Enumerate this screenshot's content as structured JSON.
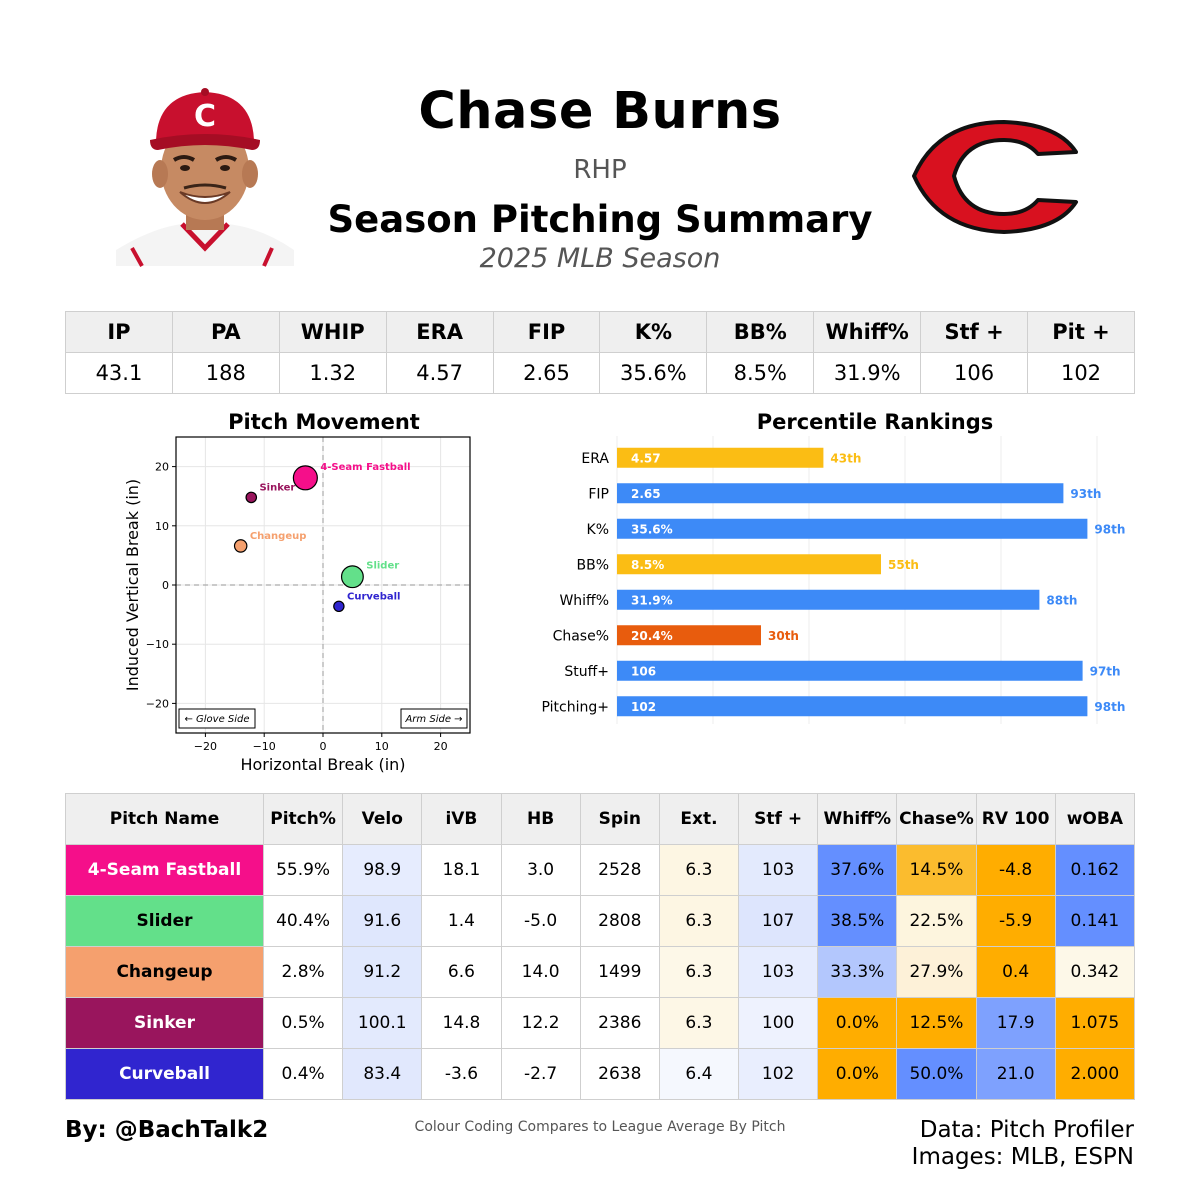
{
  "header": {
    "player_name": "Chase Burns",
    "hand": "RHP",
    "summary_title": "Season Pitching Summary",
    "season": "2025 MLB Season"
  },
  "images": {
    "player_photo": "player-headshot",
    "team_logo": "reds-c-logo"
  },
  "colors": {
    "four_seam": "#f50f8a",
    "slider": "#63e08a",
    "changeup": "#f5a06e",
    "sinker": "#99155d",
    "curveball": "#3025cf",
    "bar_blue": "#3d8af7",
    "bar_yellow": "#fbbd14",
    "bar_orange": "#e85c0d",
    "high": "#ffad00",
    "low": "#648fff"
  },
  "stats": {
    "headers": [
      "IP",
      "PA",
      "WHIP",
      "ERA",
      "FIP",
      "K%",
      "BB%",
      "Whiff%",
      "Stf +",
      "Pit +"
    ],
    "values": [
      "43.1",
      "188",
      "1.32",
      "4.57",
      "2.65",
      "35.6%",
      "8.5%",
      "31.9%",
      "106",
      "102"
    ]
  },
  "chart_data": [
    {
      "type": "scatter",
      "title": "Pitch Movement",
      "xlabel": "Horizontal Break (in)",
      "ylabel": "Induced Vertical Break (in)",
      "xlim": [
        -25,
        25
      ],
      "ylim": [
        -25,
        25
      ],
      "xticks": [
        "−20",
        "−10",
        "0",
        "10",
        "20"
      ],
      "yticks": [
        "20",
        "10",
        "0",
        "−10",
        "−20"
      ],
      "grid": true,
      "annotations": [
        "← Glove Side",
        "Arm Side →"
      ],
      "points": [
        {
          "label": "4-Seam Fastball",
          "x": -3.0,
          "y": 18.1,
          "usage": 55.9,
          "color": "#f50f8a"
        },
        {
          "label": "Sinker",
          "x": -12.2,
          "y": 14.8,
          "usage": 0.5,
          "color": "#99155d"
        },
        {
          "label": "Changeup",
          "x": -14.0,
          "y": 6.6,
          "usage": 2.8,
          "color": "#f5a06e"
        },
        {
          "label": "Slider",
          "x": 5.0,
          "y": 1.4,
          "usage": 40.4,
          "color": "#63e08a"
        },
        {
          "label": "Curveball",
          "x": 2.7,
          "y": -3.6,
          "usage": 0.4,
          "color": "#3025cf"
        }
      ]
    },
    {
      "type": "bar",
      "orientation": "horizontal",
      "title": "Percentile Rankings",
      "xlim": [
        0,
        100
      ],
      "grid": true,
      "categories": [
        "ERA",
        "FIP",
        "K%",
        "BB%",
        "Whiff%",
        "Chase%",
        "Stuff+",
        "Pitching+"
      ],
      "values": [
        43,
        93,
        98,
        55,
        88,
        30,
        97,
        98
      ],
      "bar_labels": [
        "4.57",
        "2.65",
        "35.6%",
        "8.5%",
        "31.9%",
        "20.4%",
        "106",
        "102"
      ],
      "percentile_labels": [
        "43th",
        "93th",
        "98th",
        "55th",
        "88th",
        "30th",
        "97th",
        "98th"
      ],
      "bar_colors": [
        "#fbbd14",
        "#3d8af7",
        "#3d8af7",
        "#fbbd14",
        "#3d8af7",
        "#e85c0d",
        "#3d8af7",
        "#3d8af7"
      ]
    }
  ],
  "pitch_table": {
    "headers": [
      "Pitch Name",
      "Pitch%",
      "Velo",
      "iVB",
      "HB",
      "Spin",
      "Ext.",
      "Stf +",
      "Whiff%",
      "Chase%",
      "RV 100",
      "wOBA"
    ],
    "rows": [
      {
        "name": "4-Seam Fastball",
        "name_bg": "#f50f8a",
        "name_color": "#ffffff",
        "cells": [
          "55.9%",
          "98.9",
          "18.1",
          "3.0",
          "2528",
          "6.3",
          "103",
          "37.6%",
          "14.5%",
          "-4.8",
          "0.162"
        ],
        "bgs": [
          "#ffffff",
          "#e6ecfe",
          "#ffffff",
          "#ffffff",
          "#ffffff",
          "#fdf6e3",
          "#e3eafd",
          "#648fff",
          "#fbbc2e",
          "#ffad00",
          "#648fff"
        ]
      },
      {
        "name": "Slider",
        "name_bg": "#63e08a",
        "name_color": "#000000",
        "cells": [
          "40.4%",
          "91.6",
          "1.4",
          "-5.0",
          "2808",
          "6.3",
          "107",
          "38.5%",
          "22.5%",
          "-5.9",
          "0.141"
        ],
        "bgs": [
          "#ffffff",
          "#dfe7fd",
          "#ffffff",
          "#ffffff",
          "#ffffff",
          "#fdf6e3",
          "#dde5fd",
          "#648fff",
          "#fdf5de",
          "#ffad00",
          "#648fff"
        ]
      },
      {
        "name": "Changeup",
        "name_bg": "#f5a06e",
        "name_color": "#000000",
        "cells": [
          "2.8%",
          "91.2",
          "6.6",
          "14.0",
          "1499",
          "6.3",
          "103",
          "33.3%",
          "27.9%",
          "0.4",
          "0.342"
        ],
        "bgs": [
          "#ffffff",
          "#e0e8fd",
          "#ffffff",
          "#ffffff",
          "#ffffff",
          "#fdf8e8",
          "#e6ecfe",
          "#b3c7fd",
          "#fdf1d8",
          "#ffad00",
          "#fdf8e8"
        ]
      },
      {
        "name": "Sinker",
        "name_bg": "#99155d",
        "name_color": "#ffffff",
        "cells": [
          "0.5%",
          "100.1",
          "14.8",
          "12.2",
          "2386",
          "6.3",
          "100",
          "0.0%",
          "12.5%",
          "17.9",
          "1.075"
        ],
        "bgs": [
          "#ffffff",
          "#e3eafd",
          "#ffffff",
          "#ffffff",
          "#ffffff",
          "#fdf7e6",
          "#eef2fe",
          "#ffad00",
          "#ffad00",
          "#7ea1fe",
          "#ffad00"
        ]
      },
      {
        "name": "Curveball",
        "name_bg": "#3025cf",
        "name_color": "#ffffff",
        "cells": [
          "0.4%",
          "83.4",
          "-3.6",
          "-2.7",
          "2638",
          "6.4",
          "102",
          "0.0%",
          "50.0%",
          "21.0",
          "2.000"
        ],
        "bgs": [
          "#ffffff",
          "#e1e8fd",
          "#ffffff",
          "#ffffff",
          "#ffffff",
          "#f5f8fe",
          "#e9eefe",
          "#ffad00",
          "#648fff",
          "#7ea1fe",
          "#ffad00"
        ]
      }
    ]
  },
  "footer": {
    "by": "By: @BachTalk2",
    "note": "Colour Coding Compares to League Average By Pitch",
    "data_line1": "Data: Pitch Profiler",
    "data_line2": "Images: MLB, ESPN"
  }
}
